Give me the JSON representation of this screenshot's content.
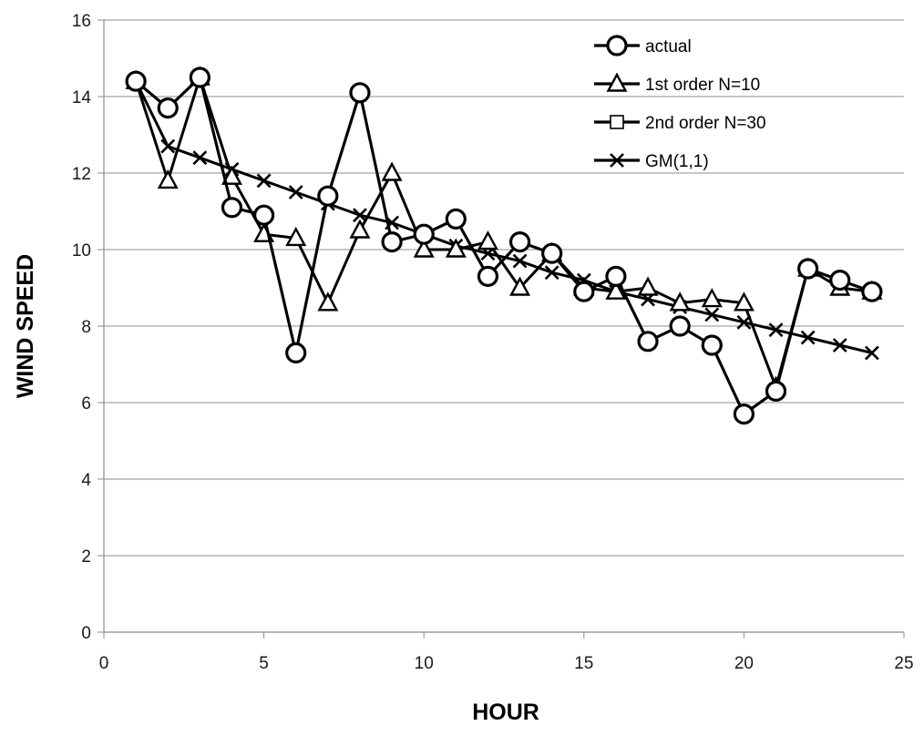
{
  "chart_data": {
    "type": "line",
    "xlabel": "HOUR",
    "ylabel": "WIND SPEED",
    "xlim": [
      0,
      25
    ],
    "ylim": [
      0,
      16
    ],
    "xticks": [
      0,
      5,
      10,
      15,
      20,
      25
    ],
    "yticks": [
      0,
      2,
      4,
      6,
      8,
      10,
      12,
      14,
      16
    ],
    "grid": "horizontal",
    "legend_position": "top-right",
    "series": [
      {
        "name": "actual",
        "marker": "circle",
        "x": [
          1,
          2,
          3,
          4,
          5,
          6,
          7,
          8,
          9,
          10,
          11,
          12,
          13,
          14,
          15,
          16,
          17,
          18,
          19,
          20,
          21,
          22,
          23,
          24
        ],
        "values": [
          14.4,
          13.7,
          14.5,
          11.1,
          10.9,
          7.3,
          11.4,
          14.1,
          10.2,
          10.4,
          10.8,
          9.3,
          10.2,
          9.9,
          8.9,
          9.3,
          7.6,
          8.0,
          7.5,
          5.7,
          6.3,
          9.5,
          9.2,
          8.9
        ]
      },
      {
        "name": "1st order N=10",
        "marker": "triangle",
        "x": [
          1,
          2,
          3,
          4,
          5,
          6,
          7,
          8,
          9,
          10,
          11,
          12,
          13,
          14,
          15,
          16,
          17,
          18,
          19,
          20,
          21,
          22,
          23,
          24
        ],
        "values": [
          14.4,
          11.8,
          14.5,
          11.9,
          10.4,
          10.3,
          8.6,
          10.5,
          12.0,
          10.0,
          10.0,
          10.2,
          9.0,
          9.9,
          9.0,
          8.9,
          9.0,
          8.6,
          8.7,
          8.6,
          6.4,
          9.5,
          9.0,
          8.9
        ]
      },
      {
        "name": "2nd order N=30",
        "marker": "square",
        "x": [
          1,
          2,
          3,
          4,
          5,
          6,
          7,
          8,
          9,
          10,
          11,
          12,
          13,
          14,
          15,
          16,
          17,
          18,
          19,
          20,
          21,
          22,
          23,
          24
        ],
        "values": [
          14.4,
          13.7,
          14.5,
          11.1,
          10.9,
          7.3,
          11.4,
          14.1,
          10.2,
          10.4,
          10.8,
          9.3,
          10.2,
          9.9,
          8.9,
          9.3,
          7.6,
          8.0,
          7.5,
          5.7,
          6.3,
          9.5,
          9.2,
          8.9
        ]
      },
      {
        "name": "GM(1,1)",
        "marker": "x",
        "x": [
          1,
          2,
          3,
          4,
          5,
          6,
          7,
          8,
          9,
          10,
          11,
          12,
          13,
          14,
          15,
          16,
          17,
          18,
          19,
          20,
          21,
          22,
          23,
          24
        ],
        "values": [
          14.4,
          12.7,
          12.4,
          12.1,
          11.8,
          11.5,
          11.2,
          10.9,
          10.7,
          10.4,
          10.1,
          9.9,
          9.7,
          9.4,
          9.2,
          8.9,
          8.7,
          8.5,
          8.3,
          8.1,
          7.9,
          7.7,
          7.5,
          7.3
        ]
      }
    ]
  }
}
